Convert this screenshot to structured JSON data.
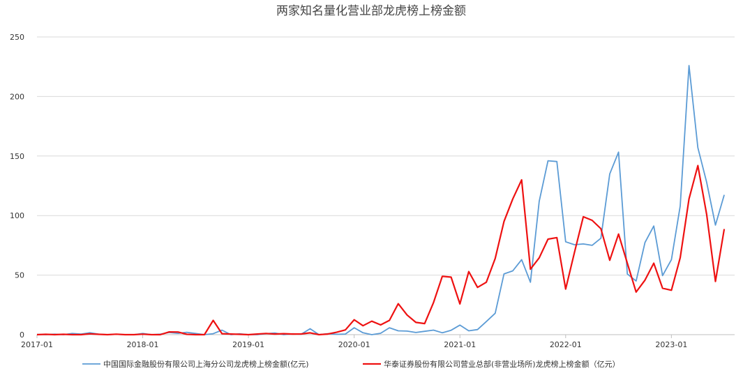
{
  "chart_data": {
    "type": "line",
    "title": "两家知名量化营业部龙虎榜上榜金额",
    "xlabel": "",
    "ylabel": "",
    "ylim": [
      0,
      250
    ],
    "yticks": [
      0,
      50,
      100,
      150,
      200,
      250
    ],
    "x_start": "2017-01",
    "x_ticks": [
      "2017-01",
      "2018-01",
      "2019-01",
      "2020-01",
      "2021-01",
      "2022-01",
      "2023-01"
    ],
    "grid": true,
    "legend_position": "bottom",
    "series": [
      {
        "name": "中国国际金融股份有限公司上海分公司龙虎榜上榜金额(亿元)",
        "color": "#5b9bd5",
        "values": [
          0.2,
          0,
          0.4,
          0,
          1,
          0.5,
          1.6,
          0.4,
          0,
          0.3,
          0,
          0,
          1,
          0,
          0.4,
          1.8,
          1.1,
          2,
          1,
          0,
          0.8,
          3.8,
          0,
          0.7,
          0,
          0,
          0.8,
          1.4,
          0,
          0.7,
          0.4,
          5,
          0,
          0.8,
          0.3,
          0.5,
          5.8,
          1.6,
          0,
          1.2,
          5.8,
          3.2,
          3,
          1.8,
          2.8,
          3.8,
          1.6,
          3.7,
          8,
          3.2,
          4.3,
          11,
          18,
          51,
          53.6,
          63,
          44,
          112,
          146,
          145.4,
          78,
          75.5,
          76.2,
          75,
          81,
          135,
          153.3,
          51,
          45,
          77.4,
          91.2,
          49.6,
          63,
          108,
          226,
          157,
          128,
          92,
          117.4
        ]
      },
      {
        "name": "华泰证券股份有限公司营业总部(非营业场所)龙虎榜上榜金额（亿元）",
        "color": "#ee1111",
        "values": [
          0,
          0.3,
          0,
          0.3,
          0,
          0,
          0.7,
          0.3,
          0,
          0.4,
          0,
          0,
          0.4,
          0,
          0,
          2.3,
          2.2,
          0.3,
          0,
          0,
          12,
          0.8,
          0.5,
          0.3,
          0,
          0.5,
          1,
          0.5,
          0.8,
          0.5,
          0.6,
          1.5,
          0,
          0.5,
          2,
          4,
          12.5,
          7.5,
          11.3,
          8.2,
          12,
          26,
          16.5,
          10.3,
          9.3,
          27,
          49,
          48.3,
          25.8,
          53,
          39.7,
          44,
          64,
          95,
          114,
          130,
          55,
          64.5,
          80.2,
          81.5,
          38.3,
          69,
          99,
          96,
          89,
          62.5,
          84.5,
          60,
          35.8,
          45.8,
          60,
          39,
          37.3,
          64.6,
          114,
          142,
          101,
          44.7,
          88.7
        ]
      }
    ]
  }
}
